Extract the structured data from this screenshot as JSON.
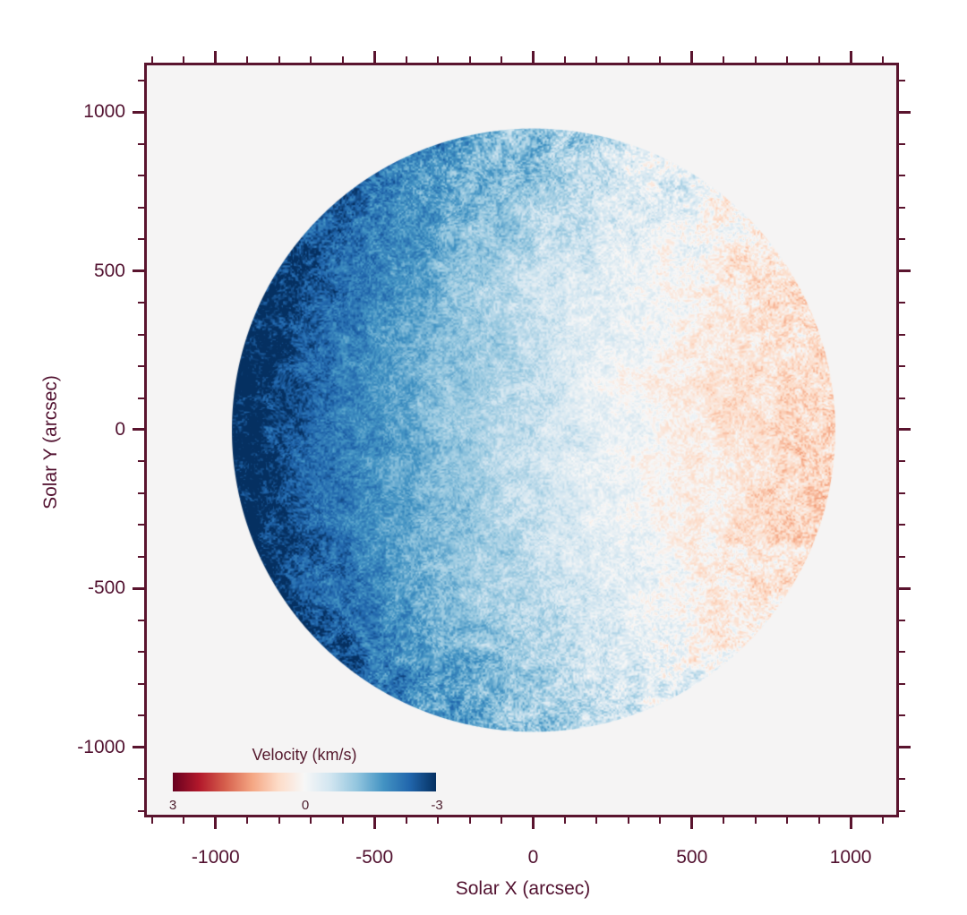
{
  "figure": {
    "background": "#ffffff",
    "plot_background": "#f5f4f4",
    "axis_color": "#5a142e",
    "label_color": "#521230"
  },
  "chart_data": {
    "type": "heatmap",
    "title": "",
    "xlabel": "Solar X (arcsec)",
    "ylabel": "Solar Y (arcsec)",
    "xlim": [
      -1225,
      1152
    ],
    "ylim": [
      -1221,
      1156
    ],
    "x_major_ticks": [
      -1000,
      -500,
      0,
      500,
      1000
    ],
    "x_major_tick_labels": [
      "-1000",
      "-500",
      "0",
      "500",
      "1000"
    ],
    "y_major_ticks": [
      -1000,
      -500,
      0,
      500,
      1000
    ],
    "y_major_tick_labels": [
      "1000",
      "500",
      "0",
      "-500",
      "-1000"
    ],
    "minor_tick_step": 100,
    "grid": false,
    "tick_direction": "out",
    "disk": {
      "center_x_arcsec": 0,
      "center_y_arcsec": 0,
      "radius_arcsec": 950,
      "limb_velocity_kms": 1.95,
      "description": "Full-disk solar Dopplergram: line-of-sight velocity dominated by solar rotation; blueshifted (approaching, about -2 km/s) on the left limb, redshifted (receding, about +2 km/s) on the right limb, near zero along the central meridian, overlaid with granulation/supergranulation speckle noise."
    },
    "colorbar": {
      "title": "Velocity (km/s)",
      "orientation": "horizontal",
      "left_value": 3,
      "right_value": -3,
      "tick_labels": [
        "3",
        "0",
        "-3"
      ],
      "colormap": "RdBu",
      "stops_left_to_right": [
        "#67001f",
        "#b2182b",
        "#d6604d",
        "#f4a582",
        "#fddbc7",
        "#f7f7f7",
        "#d1e5f0",
        "#92c5de",
        "#4393c3",
        "#2166ac",
        "#053061"
      ]
    }
  }
}
